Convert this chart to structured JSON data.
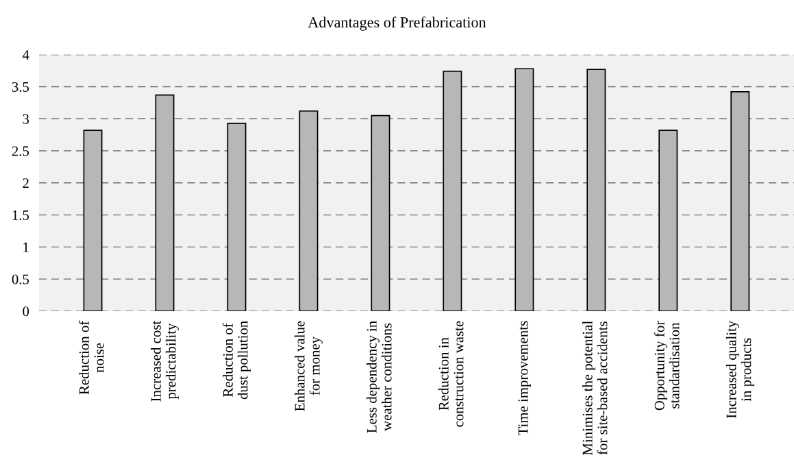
{
  "chart_data": {
    "type": "bar",
    "title": "Advantages of Prefabrication",
    "categories": [
      "Reduction of\nnoise",
      "Increased cost\npredictability",
      "Reduction of\ndust pollution",
      "Enhanced value\nfor money",
      "Less dependency in\nweather conditions",
      "Reduction in\nconstruction waste",
      "Time improvements",
      "Minimises the potential\nfor site-based accidents",
      "Opportunity for\nstandardisation",
      "Increased quality\nin products"
    ],
    "values": [
      2.82,
      3.37,
      2.93,
      3.12,
      3.05,
      3.74,
      3.78,
      3.77,
      2.82,
      3.42
    ],
    "color": "#b7b7b7",
    "ylim": [
      0,
      4
    ],
    "yticks": [
      0,
      0.5,
      1,
      1.5,
      2,
      2.5,
      3,
      3.5,
      4
    ],
    "grid": "y"
  }
}
